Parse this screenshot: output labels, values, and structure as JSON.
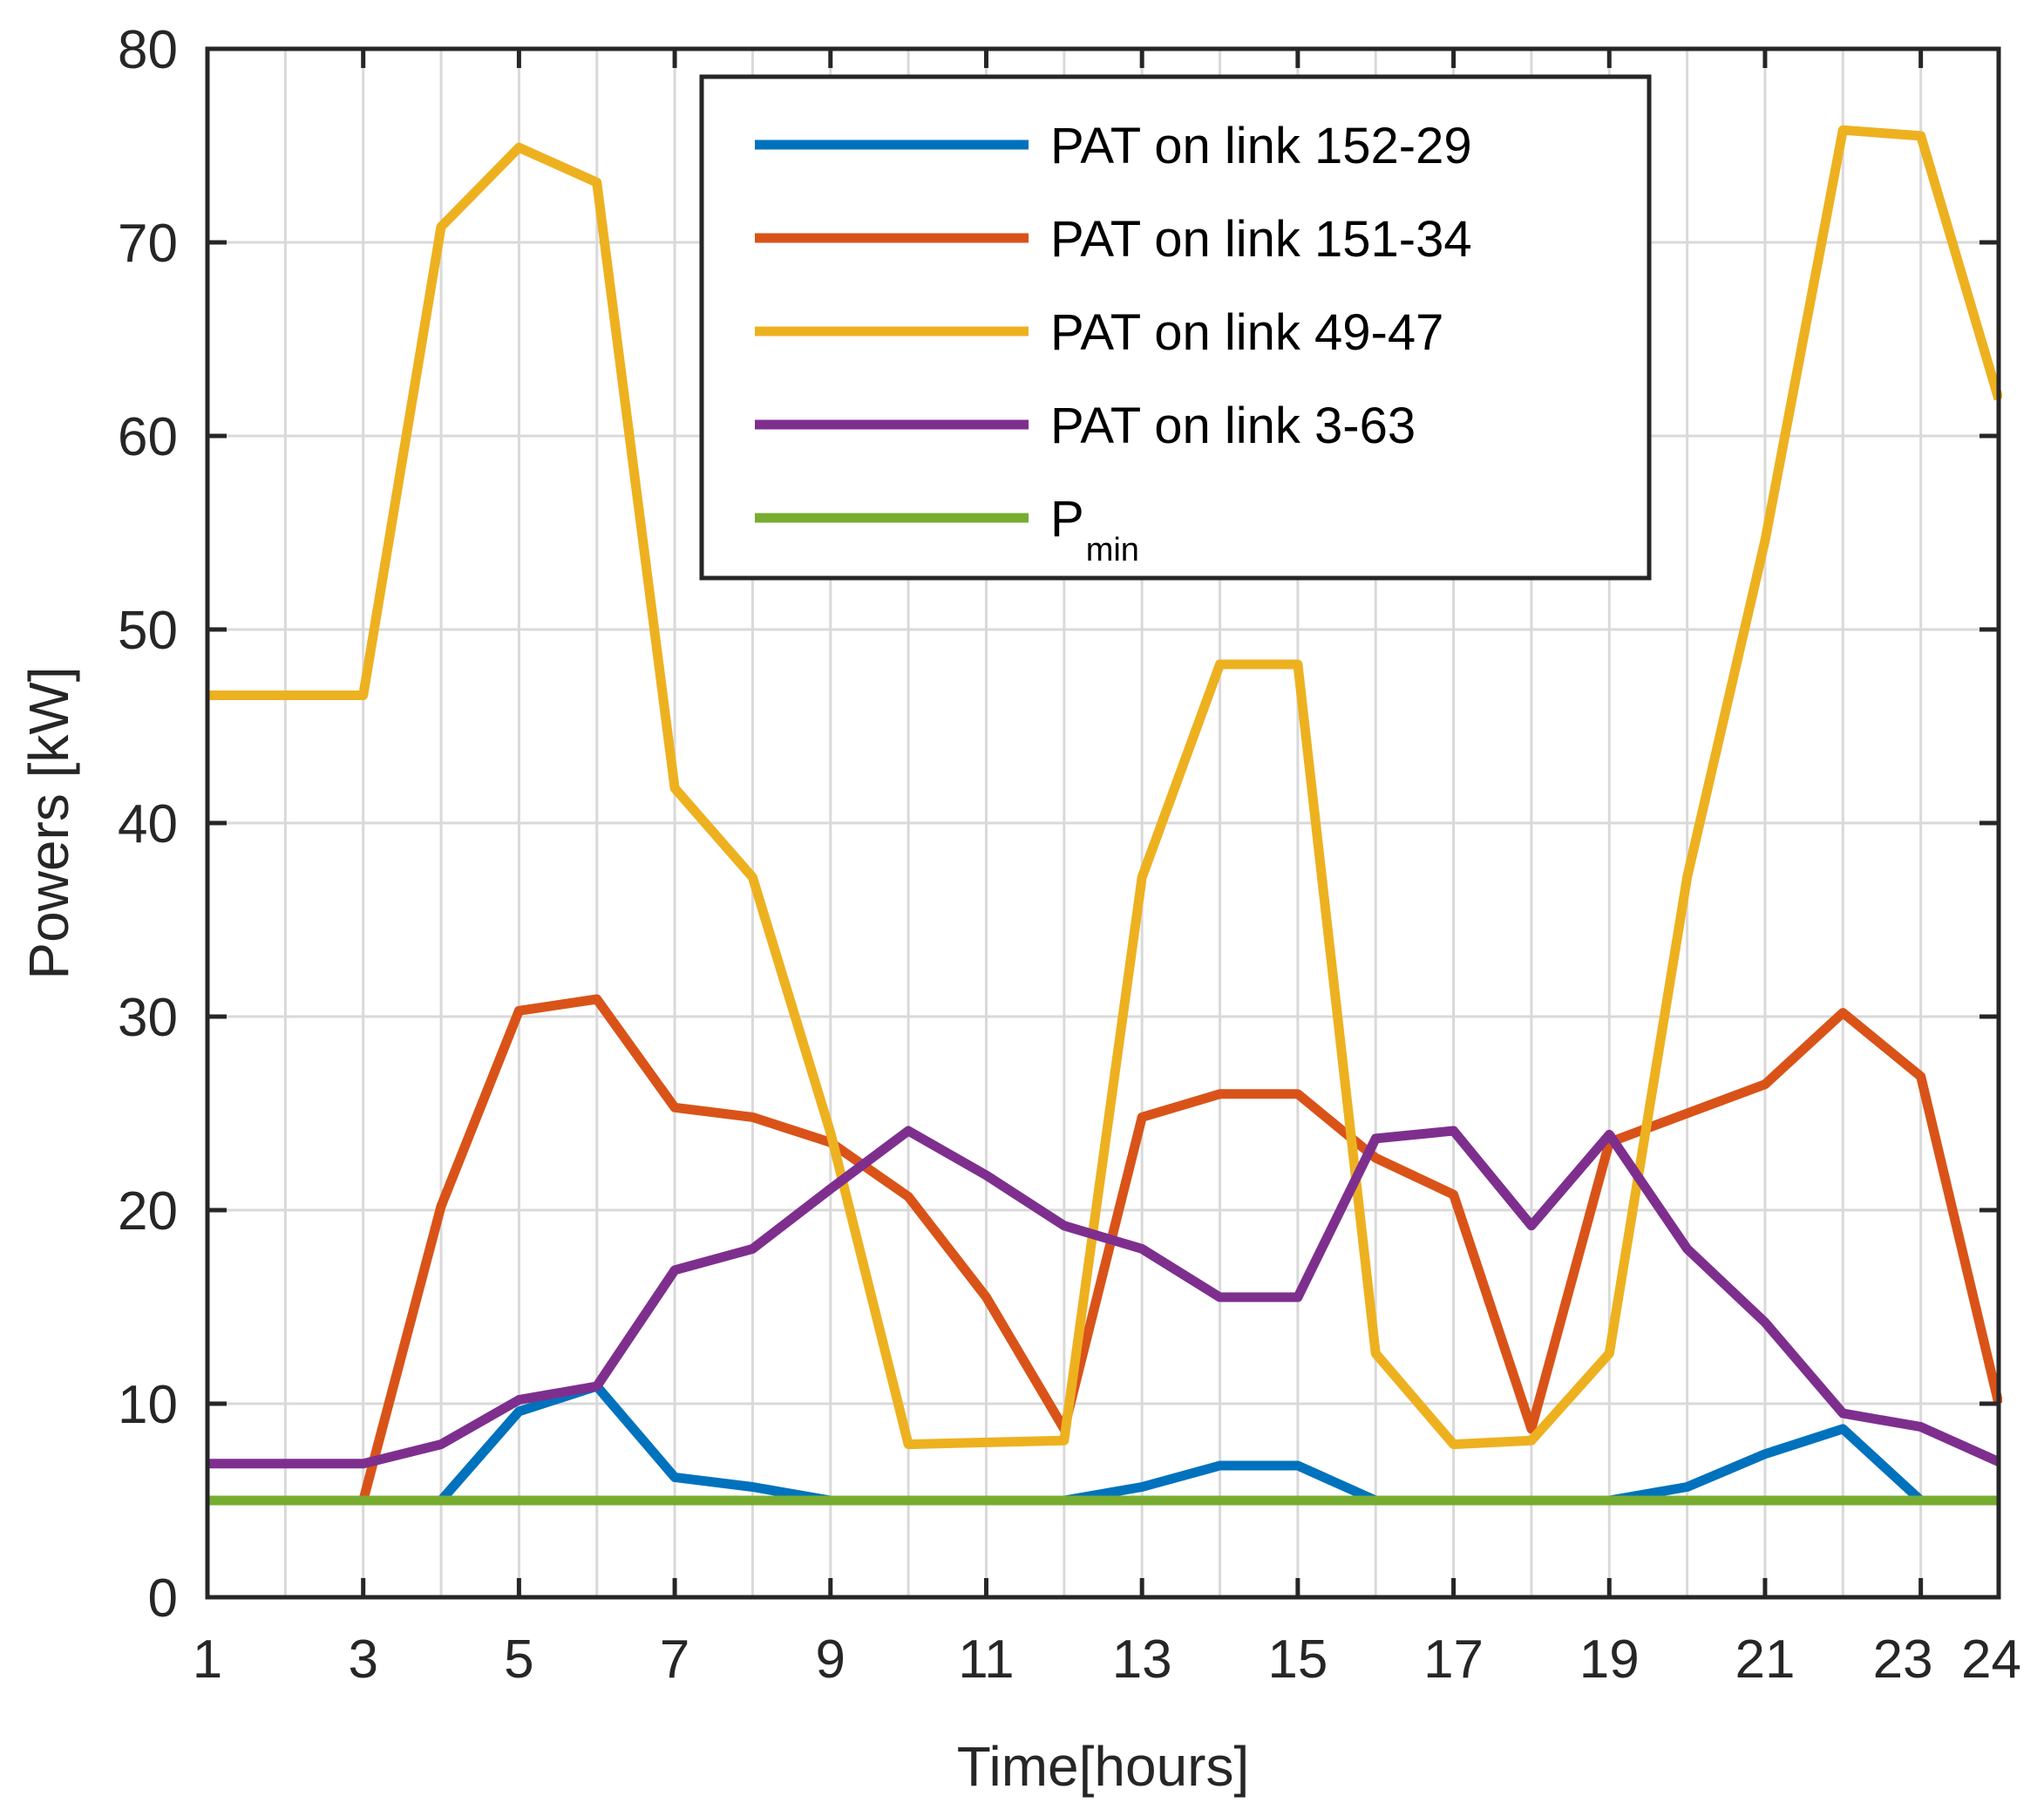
{
  "chart_data": {
    "type": "line",
    "title": "",
    "xlabel": "Time[hours]",
    "ylabel": "Powers [kW]",
    "xlim": [
      1,
      24
    ],
    "ylim": [
      0,
      80
    ],
    "xticks": [
      1,
      3,
      5,
      7,
      9,
      11,
      13,
      15,
      17,
      19,
      21,
      23,
      24
    ],
    "yticks": [
      0,
      10,
      20,
      30,
      40,
      50,
      60,
      70,
      80
    ],
    "grid": true,
    "legend_position": "top-center",
    "x": [
      1,
      2,
      3,
      4,
      5,
      6,
      7,
      8,
      9,
      10,
      11,
      12,
      13,
      14,
      15,
      16,
      17,
      18,
      19,
      20,
      21,
      22,
      23,
      24
    ],
    "series": [
      {
        "name": "PAT on link 152-29",
        "label": "PAT on link 152-29",
        "color": "#0072BD",
        "values": [
          5,
          5,
          5,
          5,
          9.6,
          10.9,
          6.2,
          5.7,
          5,
          5,
          5,
          5,
          5.7,
          6.8,
          6.8,
          5,
          5,
          5,
          5,
          5.7,
          7.4,
          8.7,
          5,
          5
        ]
      },
      {
        "name": "PAT on link 151-34",
        "label": "PAT on link 151-34",
        "color": "#D95319",
        "values": [
          5,
          5,
          5,
          20.2,
          30.3,
          30.9,
          25.3,
          24.8,
          23.5,
          20.7,
          15.5,
          8.7,
          24.8,
          26,
          26,
          22.7,
          20.8,
          8.7,
          23.5,
          25,
          26.5,
          30.2,
          26.9,
          10
        ]
      },
      {
        "name": "PAT on link 49-47",
        "label": "PAT on link 49-47",
        "color": "#EDB120",
        "values": [
          46.6,
          46.6,
          46.6,
          70.8,
          74.9,
          73.1,
          41.8,
          37.2,
          24,
          7.9,
          8,
          8.1,
          37.2,
          48.2,
          48.2,
          12.6,
          7.9,
          8.1,
          12.6,
          37.2,
          54.6,
          75.8,
          75.5,
          61.9
        ]
      },
      {
        "name": "PAT on link 3-63",
        "label": "PAT on link 3-63",
        "color": "#7E2F8E",
        "values": [
          6.9,
          6.9,
          6.9,
          7.9,
          10.2,
          10.9,
          16.9,
          18,
          21.1,
          24.1,
          21.8,
          19.2,
          18,
          15.5,
          15.5,
          23.7,
          24.1,
          19.2,
          23.9,
          18,
          14.2,
          9.5,
          8.8,
          7
        ]
      },
      {
        "name": "Pmin",
        "label": "P",
        "label_sub": "min",
        "color": "#77AC30",
        "values": [
          5,
          5,
          5,
          5,
          5,
          5,
          5,
          5,
          5,
          5,
          5,
          5,
          5,
          5,
          5,
          5,
          5,
          5,
          5,
          5,
          5,
          5,
          5,
          5
        ]
      }
    ]
  }
}
